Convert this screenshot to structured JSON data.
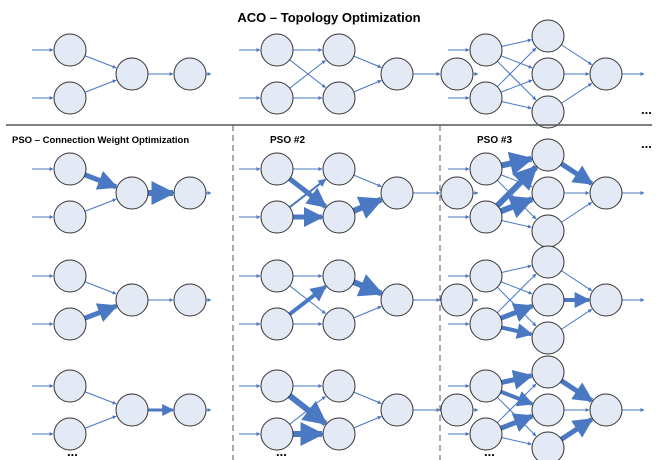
{
  "title": "ACO – Topology Optimization",
  "pso_title": "PSO – Connection Weight Optimization",
  "pso2_label": "PSO #2",
  "pso3_label": "PSO #3",
  "ellipsis": "...",
  "colors": {
    "node_fill": "#e4eaf5",
    "node_stroke": "#333333",
    "edge": "#4a78c2",
    "divider": "#555555"
  },
  "networks": {
    "top": [
      {
        "topology": "2-1-1"
      },
      {
        "topology": "2-2-1-1"
      },
      {
        "topology": "2-3-1"
      }
    ],
    "col1": [
      {
        "topology": "2-1-1",
        "weights": [
          5,
          1,
          6,
          1
        ]
      },
      {
        "topology": "2-1-1",
        "weights": [
          1,
          5,
          1,
          1
        ]
      },
      {
        "topology": "2-1-1",
        "weights": [
          1,
          1,
          3,
          1
        ]
      }
    ],
    "col2": [
      {
        "topology": "2-2-1-1",
        "weights": [
          1,
          5,
          2,
          5,
          1,
          6,
          1,
          1
        ]
      },
      {
        "topology": "2-2-1-1",
        "weights": [
          1,
          1,
          4,
          1,
          6,
          1,
          1,
          1
        ]
      },
      {
        "topology": "2-2-1-1",
        "weights": [
          1,
          6,
          1,
          6,
          1,
          1,
          1,
          1
        ]
      }
    ],
    "col3": [
      {
        "topology": "2-3-1",
        "weights": [
          6,
          1,
          1,
          6,
          6,
          1,
          5,
          1,
          1
        ]
      },
      {
        "topology": "2-3-1",
        "weights": [
          1,
          1,
          1,
          1,
          5,
          4,
          1,
          4,
          1
        ]
      },
      {
        "topology": "2-3-1",
        "weights": [
          5,
          4,
          1,
          1,
          5,
          1,
          5,
          1,
          5
        ]
      }
    ]
  }
}
